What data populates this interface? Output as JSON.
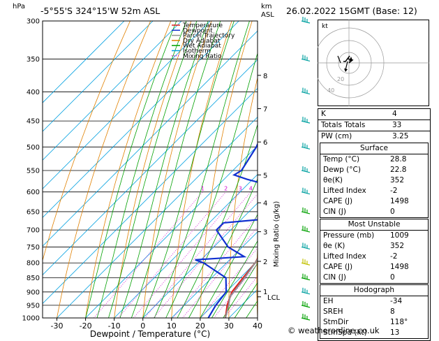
{
  "header": {
    "location": "-5°55'S 324°15'W 52m ASL",
    "datetime": "26.02.2022 15GMT (Base: 12)",
    "p_unit": "hPa",
    "km_label": "km",
    "asl_label": "ASL"
  },
  "legend": [
    "Temperature",
    "Dewpoint",
    "Parcel Trajectory",
    "Dry Adiabat",
    "Wet Adiabat",
    "Isotherm",
    "Mixing Ratio"
  ],
  "colors": {
    "temperature": "#e02020",
    "dewpoint": "#1030d0",
    "parcel": "#909090",
    "dry_adiabat": "#e08000",
    "wet_adiabat": "#00a000",
    "isotherm": "#00a0e0",
    "mixing_ratio": "#d000d0",
    "wind": "#00a0a0"
  },
  "chart_data": {
    "type": "line",
    "title": "",
    "xlabel": "Dewpoint / Temperature (°C)",
    "ylabel": "Mixing Ratio (g/kg)",
    "xlim": [
      -35,
      40
    ],
    "ylim": [
      1000,
      300
    ],
    "x_ticks": [
      -30,
      -20,
      -10,
      0,
      10,
      20,
      30,
      40
    ],
    "pressure_levels": [
      300,
      350,
      400,
      450,
      500,
      550,
      600,
      650,
      700,
      750,
      800,
      850,
      900,
      950,
      1000
    ],
    "km_ticks": [
      {
        "km": "1",
        "p": 898
      },
      {
        "km": "2",
        "p": 795
      },
      {
        "km": "3",
        "p": 705
      },
      {
        "km": "4",
        "p": 627
      },
      {
        "km": "5",
        "p": 560
      },
      {
        "km": "6",
        "p": 490
      },
      {
        "km": "7",
        "p": 428
      },
      {
        "km": "8",
        "p": 374
      }
    ],
    "lcl": {
      "label": "LCL",
      "p": 918
    },
    "mixing_ratio_labels": [
      "1",
      "2",
      "3",
      "4",
      "5",
      "8",
      "10",
      "15",
      "20",
      "25"
    ],
    "grid": true,
    "series": [
      {
        "name": "Temperature",
        "p": [
          1000,
          950,
          900,
          850,
          800,
          750,
          700,
          650,
          600,
          550,
          500,
          450,
          400,
          370
        ],
        "t": [
          28.8,
          25,
          22,
          21,
          20,
          17.5,
          15.5,
          12,
          7.5,
          3,
          -1.5,
          -7,
          -14,
          -17
        ]
      },
      {
        "name": "Dewpoint",
        "p": [
          1000,
          950,
          900,
          850,
          800,
          790,
          780,
          750,
          700,
          680,
          670,
          650,
          620,
          610,
          590,
          570,
          560,
          550,
          500,
          480,
          460,
          450,
          400,
          370,
          350,
          300
        ],
        "t": [
          22.8,
          21,
          20,
          15,
          2,
          -2,
          14,
          5,
          -5,
          -5,
          8,
          11,
          12,
          10,
          2,
          -12,
          -18,
          -17,
          -20,
          -22,
          -16,
          -18,
          -22,
          -27,
          -26,
          -30
        ]
      },
      {
        "name": "Parcel Trajectory",
        "p": [
          1000,
          950,
          918,
          850,
          800,
          750,
          700,
          650,
          600,
          550,
          500,
          450,
          400,
          370
        ],
        "t": [
          28.8,
          25.5,
          23,
          21.5,
          20,
          18,
          16,
          13.5,
          10.5,
          7,
          3,
          -2.5,
          -9,
          -13
        ]
      }
    ],
    "wind_barbs": [
      1000,
      950,
      900,
      850,
      800,
      750,
      700,
      650,
      600,
      550,
      500,
      450,
      400,
      350,
      300
    ]
  },
  "hodograph": {
    "unit": "kt",
    "rings": [
      "20",
      "40"
    ]
  },
  "indices": {
    "k_label": "K",
    "k": "4",
    "tt_label": "Totals Totals",
    "tt": "33",
    "pw_label": "PW (cm)",
    "pw": "3.25"
  },
  "surface": {
    "title": "Surface",
    "temp_label": "Temp (°C)",
    "temp": "28.8",
    "dewp_label": "Dewp (°C)",
    "dewp": "22.8",
    "thetae_label": "θe(K)",
    "thetae": "352",
    "li_label": "Lifted Index",
    "li": "-2",
    "cape_label": "CAPE (J)",
    "cape": "1498",
    "cin_label": "CIN (J)",
    "cin": "0"
  },
  "most_unstable": {
    "title": "Most Unstable",
    "pres_label": "Pressure (mb)",
    "pres": "1009",
    "thetae_label": "θe (K)",
    "thetae": "352",
    "li_label": "Lifted Index",
    "li": "-2",
    "cape_label": "CAPE (J)",
    "cape": "1498",
    "cin_label": "CIN (J)",
    "cin": "0"
  },
  "hodo_params": {
    "title": "Hodograph",
    "eh_label": "EH",
    "eh": "-34",
    "sreh_label": "SREH",
    "sreh": "8",
    "dir_label": "StmDir",
    "dir": "118°",
    "spd_label": "StmSpd (kt)",
    "spd": "13"
  },
  "footer": "© weatheronline.co.uk"
}
